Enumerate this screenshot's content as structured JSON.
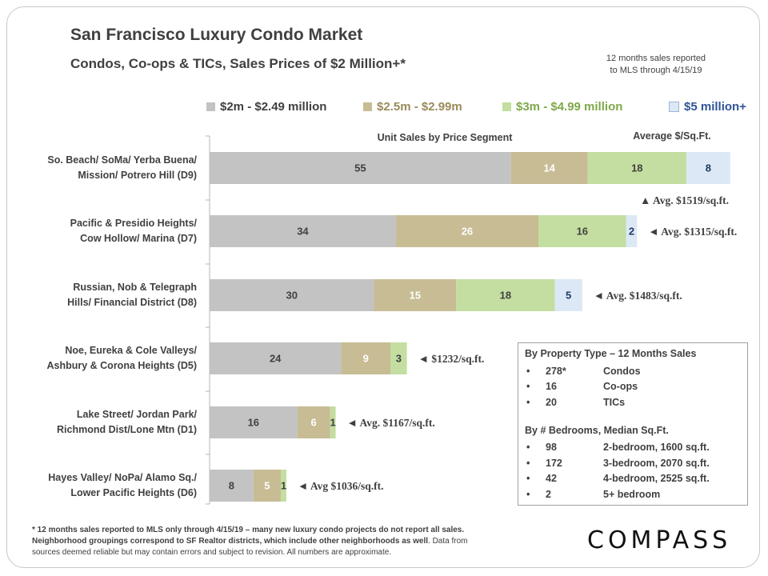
{
  "header": {
    "title": "San Francisco Luxury Condo Market",
    "subtitle": "Condos, Co-ops & TICs, Sales Prices of $2 Million+*",
    "note_line1": "12 months sales reported",
    "note_line2": "to MLS through 4/15/19"
  },
  "chart_data": {
    "type": "bar",
    "orientation": "horizontal",
    "stacked": true,
    "title": "Unit Sales by Price Segment",
    "right_header": "Average $/Sq.Ft.",
    "categories": [
      [
        "So. Beach/ SoMa/ Yerba Buena/",
        "Mission/ Potrero Hill (D9)"
      ],
      [
        "Pacific & Presidio Heights/",
        "Cow Hollow/ Marina (D7)"
      ],
      [
        "Russian, Nob & Telegraph",
        "Hills/ Financial District (D8)"
      ],
      [
        "Noe, Eureka & Cole Valleys/",
        "Ashbury & Corona Heights (D5)"
      ],
      [
        "Lake Street/ Jordan Park/",
        "Richmond Dist/Lone Mtn (D1)"
      ],
      [
        "Hayes Valley/ NoPa/ Alamo Sq./",
        "Lower Pacific Heights (D6)"
      ]
    ],
    "series": [
      {
        "name": "$2m - $2.49 million",
        "color": "#c3c3c3",
        "label_color": "#404040",
        "legend_text_color": "#404040",
        "values": [
          55,
          34,
          30,
          24,
          16,
          8
        ]
      },
      {
        "name": "$2.5m - $2.99m",
        "color": "#c7bc94",
        "label_color": "#ffffff",
        "legend_text_color": "#9a8b5a",
        "values": [
          14,
          26,
          15,
          9,
          6,
          5
        ]
      },
      {
        "name": "$3m - $4.99 million",
        "color": "#c3dea0",
        "label_color": "#404040",
        "legend_text_color": "#7fa84a",
        "values": [
          18,
          16,
          18,
          3,
          1,
          1
        ]
      },
      {
        "name": "$5 million+",
        "color": "#dce8f5",
        "label_color": "#1f3864",
        "legend_text_color": "#2f5597",
        "values": [
          8,
          2,
          5,
          0,
          0,
          0
        ]
      }
    ],
    "avg_labels": [
      "▲ Avg. $1519/sq.ft.",
      "◄ Avg. $1315/sq.ft.",
      "◄ Avg. $1483/sq.ft.",
      "◄ $1232/sq.ft.",
      "◄ Avg. $1167/sq.ft.",
      "◄ Avg $1036/sq.ft."
    ],
    "xlim": [
      0,
      95
    ],
    "grid": false
  },
  "infobox": {
    "heading1": "By Property Type – 12 Months Sales",
    "property_types": [
      {
        "num": "278*",
        "label": "Condos"
      },
      {
        "num": "16",
        "label": "Co-ops"
      },
      {
        "num": "20",
        "label": "TICs"
      }
    ],
    "heading2": "By # Bedrooms, Median Sq.Ft.",
    "bedrooms": [
      {
        "num": "98",
        "label": "2-bedroom, 1600 sq.ft."
      },
      {
        "num": "172",
        "label": "3-bedroom, 2070 sq.ft."
      },
      {
        "num": "42",
        "label": "4-bedroom, 2525 sq.ft."
      },
      {
        "num": "2",
        "label": "5+ bedroom"
      }
    ]
  },
  "footnote": {
    "line1": "* 12 months sales reported to MLS only through 4/15/19 – many new luxury condo projects do not report all sales.",
    "line2a": "Neighborhood groupings correspond to SF Realtor districts, which include other neighborhoods as well",
    "line2b": ". Data from",
    "line3": "sources deemed reliable but may contain errors and subject to revision. All numbers are approximate."
  },
  "logo": "COMPASS"
}
